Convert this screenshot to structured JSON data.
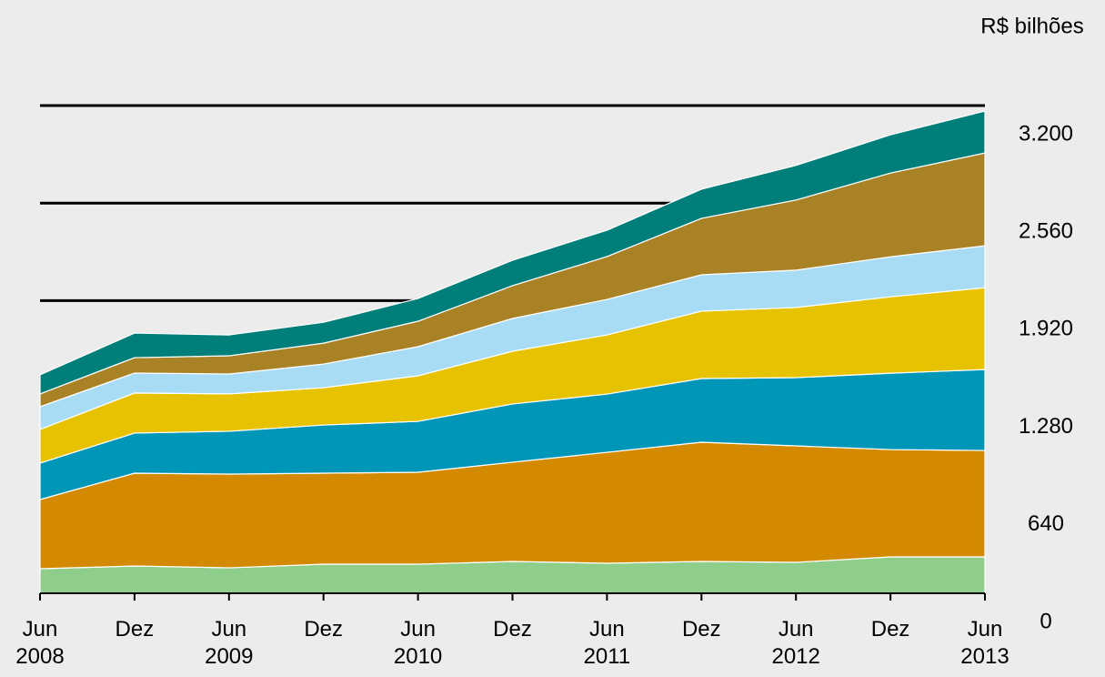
{
  "chart_data": {
    "type": "stacked_area",
    "unit_label": "R$ bilhões",
    "categories": [
      "Jun\n2008",
      "Dez",
      "Jun\n2009",
      "Dez",
      "Jun\n2010",
      "Dez",
      "Jun\n2011",
      "Dez",
      "Jun\n2012",
      "Dez",
      "Jun\n2013"
    ],
    "series": [
      {
        "color": "#8fce8a",
        "values": [
          161,
          179,
          167,
          191,
          191,
          209,
          197,
          209,
          203,
          239,
          239
        ]
      },
      {
        "color": "#d48a00",
        "values": [
          454,
          609,
          615,
          597,
          603,
          651,
          728,
          782,
          764,
          704,
          698
        ]
      },
      {
        "color": "#0096b8",
        "values": [
          239,
          263,
          281,
          316,
          334,
          382,
          382,
          418,
          448,
          501,
          531
        ]
      },
      {
        "color": "#e6c200",
        "values": [
          221,
          263,
          245,
          245,
          299,
          346,
          388,
          442,
          460,
          501,
          537
        ]
      },
      {
        "color": "#a8dcf5",
        "values": [
          149,
          131,
          131,
          155,
          191,
          215,
          233,
          239,
          245,
          263,
          275
        ]
      },
      {
        "color": "#a88225",
        "values": [
          84,
          101,
          119,
          137,
          167,
          215,
          281,
          370,
          460,
          549,
          609
        ]
      },
      {
        "color": "#007f7a",
        "values": [
          125,
          161,
          137,
          137,
          149,
          167,
          173,
          191,
          227,
          251,
          275
        ]
      }
    ],
    "ylim": [
      0,
      3200
    ],
    "yticks": [
      0,
      640,
      {
        "value": 1280,
        "label": "1.280"
      },
      {
        "value": 1920,
        "label": "1.920"
      },
      {
        "value": 2560,
        "label": "2.560"
      },
      {
        "value": 3200,
        "label": "3.200"
      }
    ],
    "grid": true
  }
}
